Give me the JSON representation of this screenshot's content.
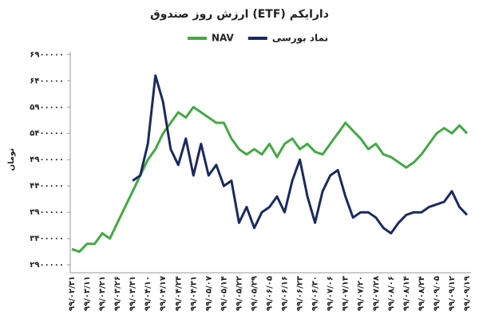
{
  "chart_data": {
    "type": "line",
    "title": "ارزش روز صندوق (ETF) دارایکم",
    "y_label": "تومان",
    "categories": [
      "۹۹/۰۲/۳۱",
      null,
      "۹۹/۰۳/۱۱",
      null,
      "۹۹/۰۳/۲۱",
      null,
      "۹۹/۰۳/۲۶",
      null,
      "۹۹/۰۳/۳۱",
      null,
      "۹۹/۰۴/۱۰",
      null,
      "۹۹/۰۴/۱۷",
      null,
      "۹۹/۰۴/۲۴",
      null,
      "۹۹/۰۴/۳۱",
      null,
      "۹۹/۰۵/۰۷",
      null,
      "۹۹/۰۵/۱۴",
      null,
      "۹۹/۰۵/۲۲",
      null,
      "۹۹/۰۵/۲۹",
      null,
      "۹۹/۰۶/۰۵",
      null,
      "۹۹/۰۶/۱۶",
      null,
      "۹۹/۰۶/۲۳",
      null,
      "۹۹/۰۶/۳۰",
      null,
      "۹۹/۰۷/۰۶",
      null,
      "۹۹/۰۷/۱۳",
      null,
      "۹۹/۰۷/۲۰",
      null,
      "۹۹/۰۷/۲۸",
      null,
      "۹۹/۰۸/۰۶",
      null,
      "۹۹/۰۸/۱۴",
      null,
      "۹۹/۰۸/۲۴",
      null,
      "۹۹/۰۹/۰۵",
      null,
      "۹۹/۰۹/۱۲",
      null,
      "۹۹/۰۹/۱۹"
    ],
    "series": [
      {
        "name": "NAV",
        "color": "#45a845",
        "values": [
          3200000,
          3150000,
          3300000,
          3300000,
          3500000,
          3400000,
          3700000,
          4000000,
          4300000,
          4600000,
          4900000,
          5100000,
          5400000,
          5600000,
          5800000,
          5700000,
          5900000,
          5800000,
          5700000,
          5600000,
          5600000,
          5300000,
          5100000,
          5000000,
          5100000,
          5000000,
          5200000,
          4950000,
          5200000,
          5300000,
          5100000,
          5200000,
          5050000,
          5000000,
          5200000,
          5400000,
          5600000,
          5450000,
          5300000,
          5100000,
          5200000,
          5000000,
          4950000,
          4850000,
          4750000,
          4850000,
          5000000,
          5200000,
          5400000,
          5500000,
          5400000,
          5550000,
          5400000
        ]
      },
      {
        "name": "نماد بورسی",
        "color": "#1b2a5e",
        "values": [
          null,
          null,
          null,
          null,
          null,
          null,
          null,
          null,
          4500000,
          4600000,
          5200000,
          6500000,
          6000000,
          5100000,
          4800000,
          5300000,
          4600000,
          5200000,
          4600000,
          4800000,
          4400000,
          4500000,
          3700000,
          4000000,
          3600000,
          3900000,
          4000000,
          4200000,
          3900000,
          4500000,
          4900000,
          4200000,
          3700000,
          4300000,
          4600000,
          4700000,
          4200000,
          3800000,
          3900000,
          3900000,
          3800000,
          3600000,
          3500000,
          3700000,
          3850000,
          3900000,
          3900000,
          4000000,
          4050000,
          4100000,
          4300000,
          4000000,
          3850000
        ]
      }
    ],
    "ylim": [
      2750000,
      6950000
    ],
    "yticks": [
      {
        "value": 2900000,
        "label": "۲۹۰۰۰۰۰"
      },
      {
        "value": 3400000,
        "label": "۳۴۰۰۰۰۰"
      },
      {
        "value": 3900000,
        "label": "۳۹۰۰۰۰۰"
      },
      {
        "value": 4400000,
        "label": "۴۴۰۰۰۰۰"
      },
      {
        "value": 4900000,
        "label": "۴۹۰۰۰۰۰"
      },
      {
        "value": 5400000,
        "label": "۵۴۰۰۰۰۰"
      },
      {
        "value": 5900000,
        "label": "۵۹۰۰۰۰۰"
      },
      {
        "value": 6400000,
        "label": "۶۴۰۰۰۰۰"
      },
      {
        "value": 6900000,
        "label": "۶۹۰۰۰۰۰"
      }
    ],
    "grid": false
  }
}
